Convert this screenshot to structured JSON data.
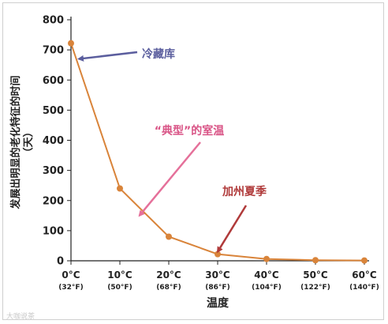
{
  "chart_data": {
    "type": "line",
    "x": [
      0,
      10,
      20,
      30,
      40,
      50,
      60
    ],
    "y": [
      722,
      240,
      80,
      22,
      6,
      2,
      1
    ],
    "x_tick_labels": [
      {
        "main": "0°C",
        "sub": "(32°F)"
      },
      {
        "main": "10°C",
        "sub": "(50°F)"
      },
      {
        "main": "20°C",
        "sub": "(68°F)"
      },
      {
        "main": "30°C",
        "sub": "(86°F)"
      },
      {
        "main": "40°C",
        "sub": "(104°F)"
      },
      {
        "main": "50°C",
        "sub": "(122°F)"
      },
      {
        "main": "60°C",
        "sub": "(140°F)"
      }
    ],
    "y_ticks": [
      0,
      100,
      200,
      300,
      400,
      500,
      600,
      700,
      800
    ],
    "ylim": [
      0,
      800
    ],
    "xlim": [
      0,
      60
    ],
    "xlabel": "温度",
    "ylabel_line1": "发展出明显的老化特征的时间",
    "ylabel_line2": "（天）",
    "grid": false,
    "line_color": "#d9843a",
    "annotations": [
      {
        "text": "冷藏库",
        "color": "#5b5e9e",
        "arrow_color": "#5b5e9e",
        "target_x": 0,
        "target_y": 670
      },
      {
        "text": "“典型”的室温",
        "color": "#d95486",
        "arrow_color": "#e5709a",
        "target_x": 14,
        "target_y": 150
      },
      {
        "text": "加州夏季",
        "color": "#b03a3a",
        "arrow_color": "#b03a3a",
        "target_x": 30,
        "target_y": 30
      }
    ]
  },
  "watermark": "大咖说茶"
}
